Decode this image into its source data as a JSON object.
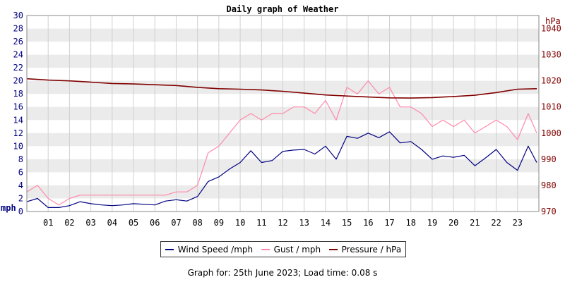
{
  "chart_data": {
    "type": "line",
    "title": "Daily graph of Weather",
    "left_axis": {
      "unit_label": "mph",
      "ylim": [
        0,
        30
      ],
      "ticks": [
        "0",
        "2",
        "4",
        "6",
        "8",
        "10",
        "12",
        "14",
        "16",
        "18",
        "20",
        "22",
        "24",
        "26",
        "28",
        "30"
      ]
    },
    "right_axis": {
      "unit_label": "hPa",
      "ylim": [
        970,
        1045
      ],
      "ticks": [
        "970",
        "980",
        "990",
        "1000",
        "1010",
        "1020",
        "1030",
        "1040"
      ]
    },
    "x_axis": {
      "xlim": [
        0,
        24
      ],
      "ticks": [
        "01",
        "02",
        "03",
        "04",
        "05",
        "06",
        "07",
        "08",
        "09",
        "10",
        "11",
        "12",
        "13",
        "14",
        "15",
        "16",
        "17",
        "18",
        "19",
        "20",
        "21",
        "22",
        "23"
      ]
    },
    "grid": true,
    "legend_placement": "bottom",
    "series": [
      {
        "name": "Wind Speed /mph",
        "axis": "left",
        "color": "#000080",
        "x": [
          0,
          0.5,
          1,
          1.5,
          2,
          2.5,
          3,
          3.5,
          4,
          4.5,
          5,
          5.5,
          6,
          6.5,
          7,
          7.5,
          8,
          8.5,
          9,
          9.5,
          10,
          10.5,
          11,
          11.5,
          12,
          12.5,
          13,
          13.5,
          14,
          14.5,
          15,
          15.5,
          16,
          16.5,
          17,
          17.5,
          18,
          18.5,
          19,
          19.5,
          20,
          20.5,
          21,
          21.5,
          22,
          22.5,
          23,
          23.5,
          23.9
        ],
        "values": [
          1.5,
          2,
          0.6,
          0.6,
          0.9,
          1.5,
          1.2,
          1.0,
          0.9,
          1.0,
          1.2,
          1.1,
          1.0,
          1.6,
          1.8,
          1.6,
          2.3,
          4.6,
          5.3,
          6.5,
          7.5,
          9.3,
          7.5,
          7.8,
          9.2,
          9.4,
          9.5,
          8.8,
          10.0,
          8.0,
          11.5,
          11.2,
          12.0,
          11.3,
          12.2,
          10.5,
          10.7,
          9.5,
          8.0,
          8.5,
          8.3,
          8.6,
          7.0,
          8.2,
          9.5,
          7.5,
          6.3,
          10.0,
          7.5
        ]
      },
      {
        "name": "Gust / mph",
        "axis": "left",
        "color": "#ff88aa",
        "x": [
          0,
          0.5,
          1,
          1.5,
          2,
          2.5,
          3,
          3.5,
          4,
          4.5,
          5,
          5.5,
          6,
          6.5,
          7,
          7.5,
          8,
          8.5,
          9,
          9.5,
          10,
          10.5,
          11,
          11.5,
          12,
          12.5,
          13,
          13.5,
          14,
          14.5,
          15,
          15.5,
          16,
          16.5,
          17,
          17.5,
          18,
          18.5,
          19,
          19.5,
          20,
          20.5,
          21,
          21.5,
          22,
          22.5,
          23,
          23.5,
          23.9
        ],
        "values": [
          3,
          4,
          2,
          1,
          2,
          2.5,
          2.5,
          2.5,
          2.5,
          2.5,
          2.5,
          2.5,
          2.5,
          2.5,
          3,
          3,
          4,
          9,
          10,
          12,
          14,
          15,
          14,
          15,
          15,
          16,
          16,
          15,
          17,
          14,
          19,
          18,
          20,
          18,
          19,
          16,
          16,
          15,
          13,
          14,
          13,
          14,
          12,
          13,
          14,
          13,
          11,
          15,
          12
        ]
      },
      {
        "name": "Pressure / hPa",
        "axis": "right",
        "color": "#800000",
        "x": [
          0,
          1,
          2,
          3,
          4,
          5,
          6,
          7,
          8,
          9,
          10,
          11,
          12,
          13,
          14,
          15,
          16,
          17,
          18,
          19,
          20,
          21,
          22,
          23,
          23.9
        ],
        "values": [
          1020.8,
          1020.3,
          1020.0,
          1019.5,
          1019.0,
          1018.8,
          1018.5,
          1018.2,
          1017.5,
          1017.0,
          1016.8,
          1016.5,
          1016.0,
          1015.3,
          1014.6,
          1014.2,
          1013.8,
          1013.5,
          1013.4,
          1013.6,
          1014.0,
          1014.5,
          1015.5,
          1016.8,
          1017.0
        ]
      }
    ]
  },
  "legend": {
    "wind": "Wind Speed /mph",
    "gust": "Gust / mph",
    "pressure": "Pressure / hPa",
    "colors": {
      "wind": "#000080",
      "gust": "#ff88aa",
      "pressure": "#800000"
    }
  },
  "footer": "Graph for: 25th June 2023; Load time: 0.08 s"
}
